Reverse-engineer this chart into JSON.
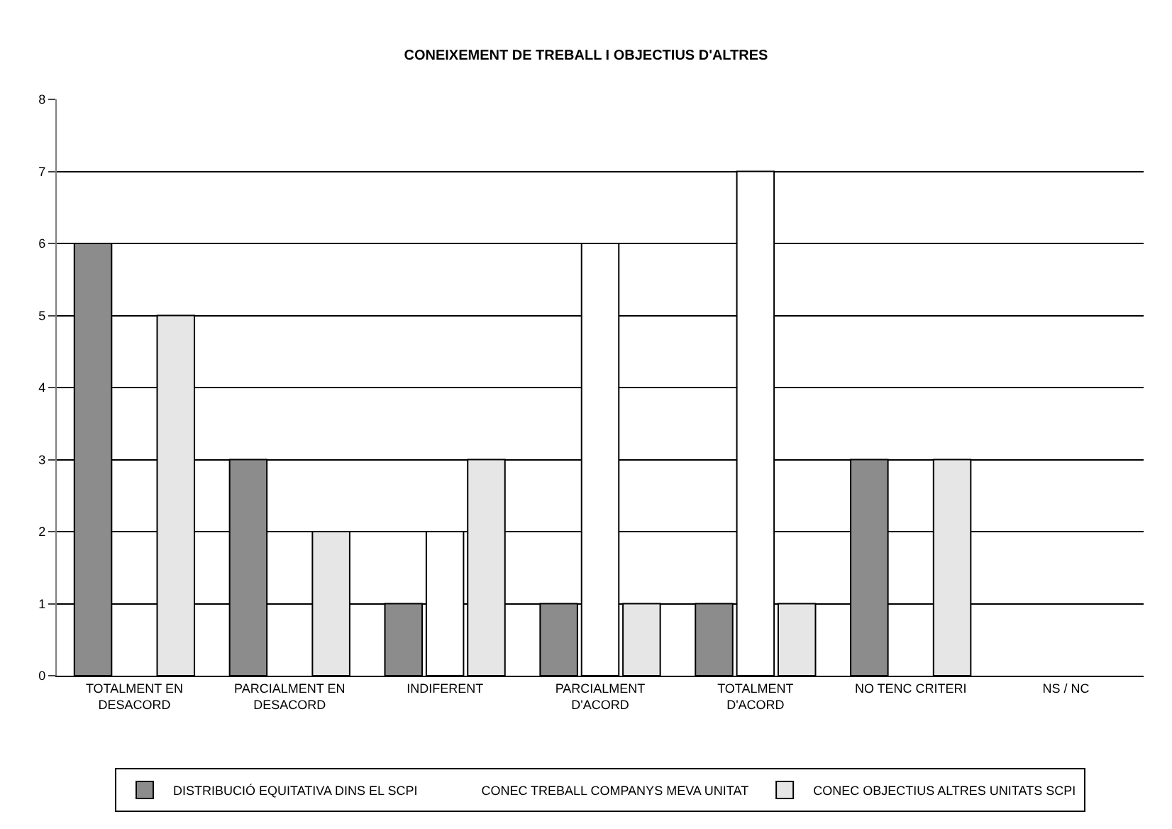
{
  "chart_data": {
    "type": "bar",
    "title": "CONEIXEMENT DE TREBALL I OBJECTIUS D'ALTRES",
    "categories": [
      "TOTALMENT EN DESACORD",
      "PARCIALMENT EN DESACORD",
      "INDIFERENT",
      "PARCIALMENT D'ACORD",
      "TOTALMENT D'ACORD",
      "NO TENC CRITERI",
      "NS / NC"
    ],
    "series": [
      {
        "name": "DISTRIBUCIÓ EQUITATIVA DINS EL SCPI",
        "color": "#8c8c8c",
        "values": [
          6,
          3,
          1,
          1,
          1,
          3,
          0
        ]
      },
      {
        "name": "CONEC TREBALL COMPANYS MEVA UNITAT",
        "color": "#ffffff",
        "values": [
          0,
          0,
          2,
          6,
          7,
          0,
          0
        ]
      },
      {
        "name": "CONEC OBJECTIUS ALTRES UNITATS SCPI",
        "color": "#e6e6e6",
        "values": [
          5,
          2,
          3,
          1,
          1,
          3,
          0
        ]
      }
    ],
    "ylim": [
      0,
      8
    ],
    "yticks": [
      0,
      1,
      2,
      3,
      4,
      5,
      6,
      7,
      8
    ],
    "grid": "y",
    "legend": "bottom"
  }
}
